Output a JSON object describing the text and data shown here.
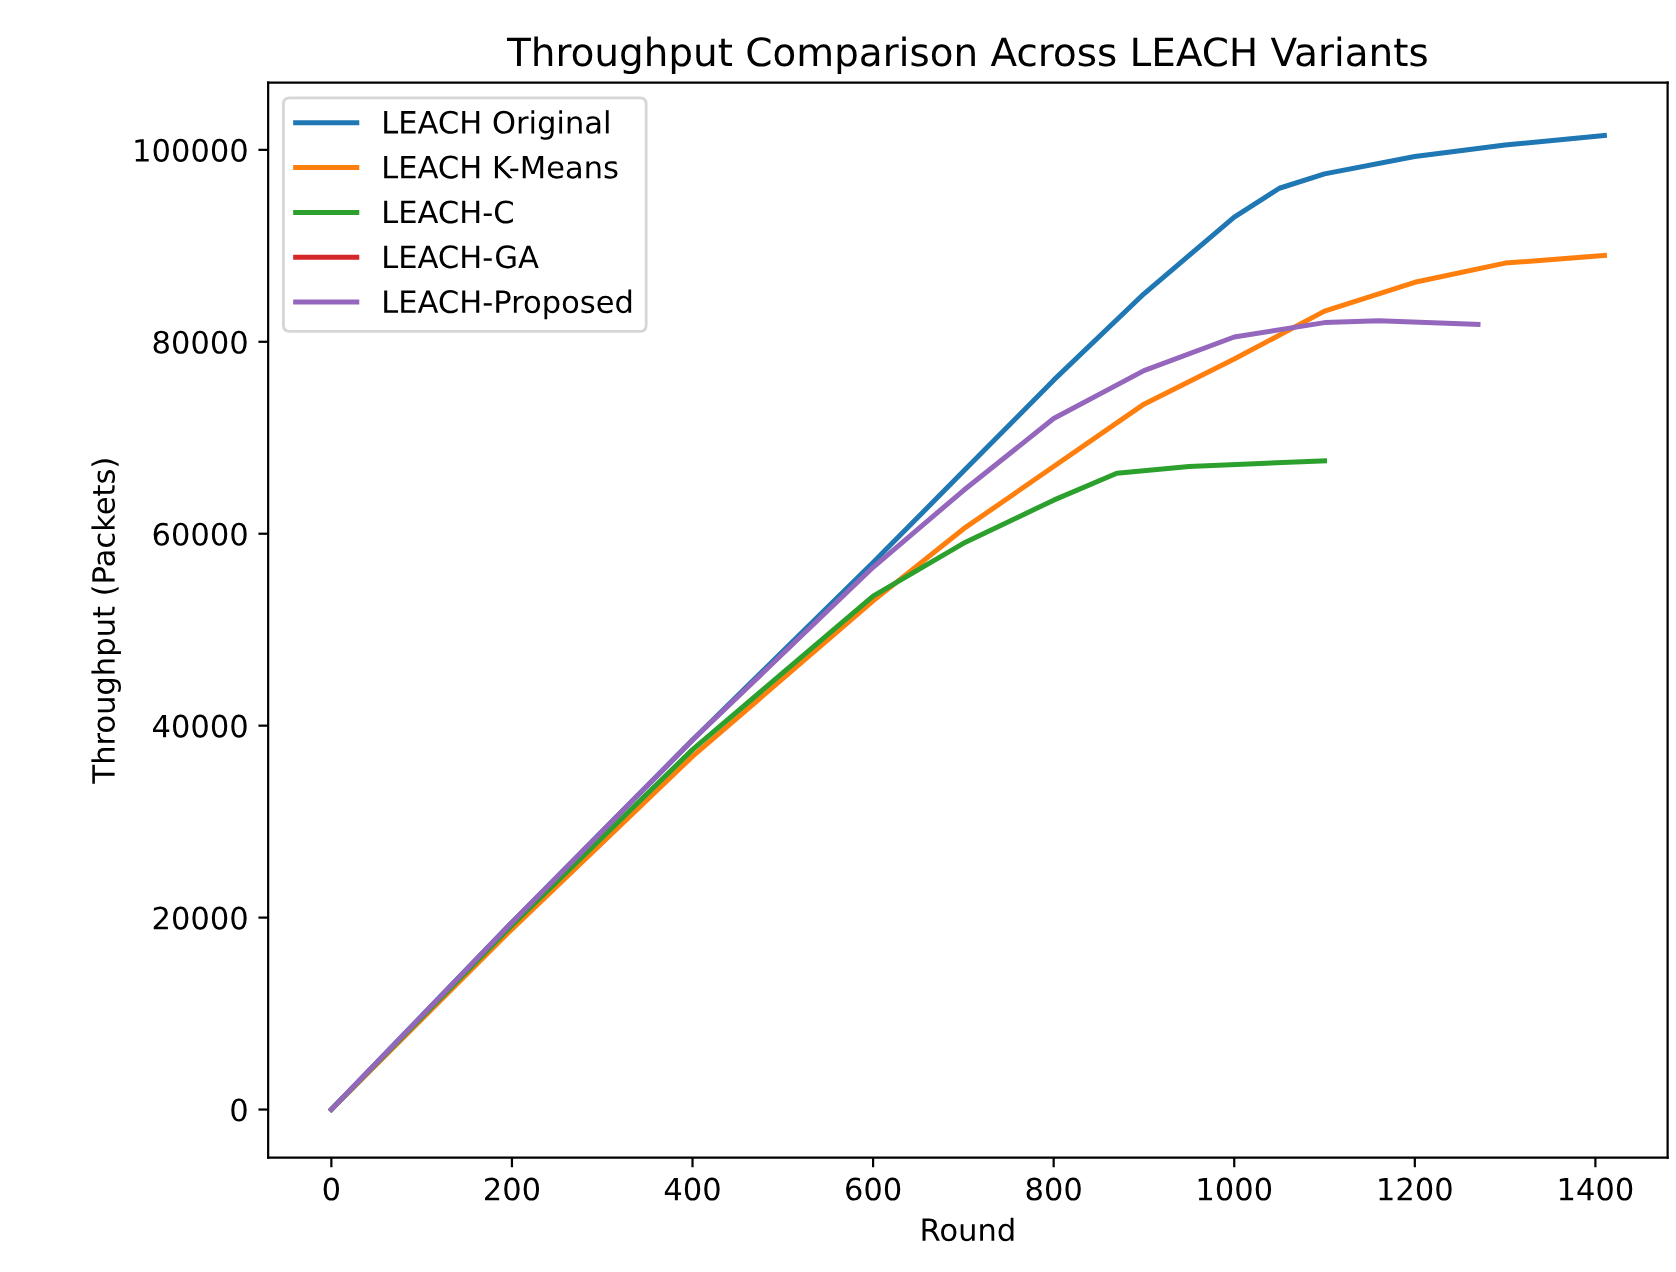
{
  "chart_data": {
    "type": "line",
    "title": "Throughput Comparison Across LEACH Variants",
    "xlabel": "Round",
    "ylabel": "Throughput (Packets)",
    "xlim": [
      -70,
      1480
    ],
    "ylim": [
      -5000,
      107000
    ],
    "xticks": [
      0,
      200,
      400,
      600,
      800,
      1000,
      1200,
      1400
    ],
    "yticks": [
      0,
      20000,
      40000,
      60000,
      80000,
      100000
    ],
    "grid": false,
    "legend": "top left",
    "marker": "none",
    "line_style": "solid",
    "series": [
      {
        "name": "LEACH Original",
        "color": "#1f77b4",
        "x": [
          0,
          200,
          400,
          600,
          700,
          800,
          900,
          1000,
          1050,
          1100,
          1200,
          1300,
          1410
        ],
        "values": [
          0,
          19500,
          38500,
          57000,
          66500,
          76000,
          85000,
          93000,
          96000,
          97500,
          99300,
          100500,
          101500
        ]
      },
      {
        "name": "LEACH K-Means",
        "color": "#ff7f0e",
        "x": [
          0,
          200,
          400,
          600,
          700,
          800,
          900,
          1000,
          1100,
          1200,
          1300,
          1410
        ],
        "values": [
          0,
          18800,
          36800,
          53000,
          60500,
          67000,
          73500,
          78200,
          83200,
          86200,
          88200,
          89000
        ]
      },
      {
        "name": "LEACH-C",
        "color": "#2ca02c",
        "x": [
          0,
          200,
          400,
          600,
          700,
          800,
          870,
          950,
          1100
        ],
        "values": [
          0,
          19200,
          37500,
          53500,
          59000,
          63500,
          66300,
          67000,
          67600
        ]
      },
      {
        "name": "LEACH-GA",
        "color": "#d62728"
      },
      {
        "name": "LEACH-Proposed",
        "color": "#9467bd",
        "x": [
          0,
          200,
          400,
          600,
          700,
          800,
          900,
          1000,
          1100,
          1160,
          1270
        ],
        "values": [
          0,
          19500,
          38500,
          56500,
          64500,
          72000,
          77000,
          80500,
          82000,
          82200,
          81800
        ]
      }
    ]
  }
}
